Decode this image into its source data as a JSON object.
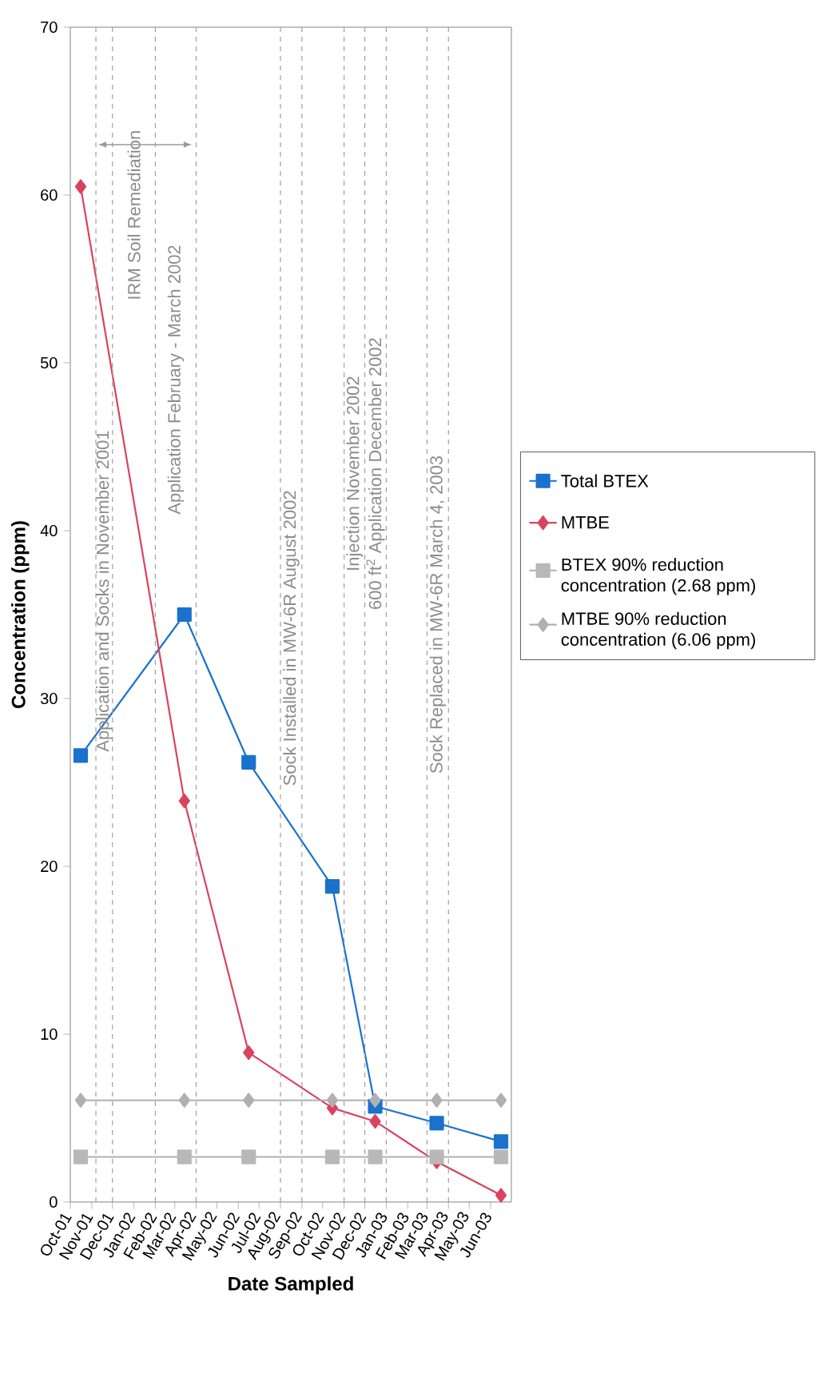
{
  "chart_data": {
    "type": "line",
    "xlabel": "Date Sampled",
    "ylabel": "Concentration (ppm)",
    "x": [
      "2001-10-16",
      "2002-03-15",
      "2002-06-16",
      "2002-10-15",
      "2002-12-16",
      "2003-03-15",
      "2003-06-16"
    ],
    "series": [
      {
        "name": "Total BTEX",
        "color": "#1a72cc",
        "marker": "square",
        "values": [
          26.6,
          35.0,
          26.2,
          18.8,
          5.7,
          4.7,
          3.6
        ]
      },
      {
        "name": "MTBE",
        "color": "#d9435e",
        "marker": "diamond",
        "values": [
          60.5,
          23.9,
          8.9,
          5.6,
          4.8,
          2.4,
          0.4
        ]
      },
      {
        "name": "BTEX 90% reduction concentration (2.68 ppm)",
        "color": "#b8b8b8",
        "marker": "square",
        "values": [
          2.68,
          2.68,
          2.68,
          2.68,
          2.68,
          2.68,
          2.68
        ]
      },
      {
        "name": "MTBE 90% reduction concentration (6.06 ppm)",
        "color": "#b0b0b0",
        "marker": "diamond",
        "values": [
          6.06,
          6.06,
          6.06,
          6.06,
          6.06,
          6.06,
          6.06
        ]
      }
    ],
    "xlim": [
      "2001-10-01",
      "2003-07-01"
    ],
    "xticks": [
      {
        "value": "2001-10-01",
        "label": "Oct-01"
      },
      {
        "value": "2001-11-01",
        "label": "Nov-01"
      },
      {
        "value": "2001-12-01",
        "label": "Dec-01"
      },
      {
        "value": "2002-01-01",
        "label": "Jan-02"
      },
      {
        "value": "2002-02-01",
        "label": "Feb-02"
      },
      {
        "value": "2002-03-01",
        "label": "Mar-02"
      },
      {
        "value": "2002-04-01",
        "label": "Apr-02"
      },
      {
        "value": "2002-05-01",
        "label": "May-02"
      },
      {
        "value": "2002-06-01",
        "label": "Jun-02"
      },
      {
        "value": "2002-07-01",
        "label": "Jul-02"
      },
      {
        "value": "2002-08-01",
        "label": "Aug-02"
      },
      {
        "value": "2002-09-01",
        "label": "Sep-02"
      },
      {
        "value": "2002-10-01",
        "label": "Oct-02"
      },
      {
        "value": "2002-11-01",
        "label": "Nov-02"
      },
      {
        "value": "2002-12-01",
        "label": "Dec-02"
      },
      {
        "value": "2003-01-01",
        "label": "Jan-03"
      },
      {
        "value": "2003-02-01",
        "label": "Feb-03"
      },
      {
        "value": "2003-03-01",
        "label": "Mar-03"
      },
      {
        "value": "2003-04-01",
        "label": "Apr-03"
      },
      {
        "value": "2003-05-01",
        "label": "May-03"
      },
      {
        "value": "2003-06-01",
        "label": "Jun-03"
      }
    ],
    "ylim": [
      0,
      70
    ],
    "yticks": [
      0,
      10,
      20,
      30,
      40,
      50,
      60,
      70
    ],
    "legend": "right",
    "ref_lines": [
      {
        "axis": "x",
        "value": "2001-11-07",
        "color": "#a0a0a0",
        "line_style": "dashed"
      },
      {
        "axis": "x",
        "value": "2001-12-01",
        "color": "#a0a0a0",
        "line_style": "dashed"
      },
      {
        "axis": "x",
        "value": "2002-02-01",
        "color": "#a0a0a0",
        "line_style": "dashed"
      },
      {
        "axis": "x",
        "value": "2002-04-01",
        "color": "#a0a0a0",
        "line_style": "dashed"
      },
      {
        "axis": "x",
        "value": "2002-08-01",
        "color": "#a0a0a0",
        "line_style": "dashed"
      },
      {
        "axis": "x",
        "value": "2002-09-01",
        "color": "#a0a0a0",
        "line_style": "dashed"
      },
      {
        "axis": "x",
        "value": "2002-11-01",
        "color": "#a0a0a0",
        "line_style": "dashed"
      },
      {
        "axis": "x",
        "value": "2002-12-01",
        "color": "#a0a0a0",
        "line_style": "dashed"
      },
      {
        "axis": "x",
        "value": "2003-01-01",
        "color": "#a0a0a0",
        "line_style": "dashed"
      },
      {
        "axis": "x",
        "value": "2003-03-01",
        "color": "#a0a0a0",
        "line_style": "dashed"
      },
      {
        "axis": "x",
        "value": "2003-04-01",
        "color": "#a0a0a0",
        "line_style": "dashed"
      }
    ],
    "annotations": [
      "Application and Socks in November 2001",
      "IRM Soil Remediation",
      "Application February - March 2002",
      "Sock Installed in MW-6R August 2002",
      "Injection November 2002",
      "600 ft$^{2}$ Application December 2002",
      "Sock Replaced in MW-6R March 4, 2003"
    ]
  }
}
